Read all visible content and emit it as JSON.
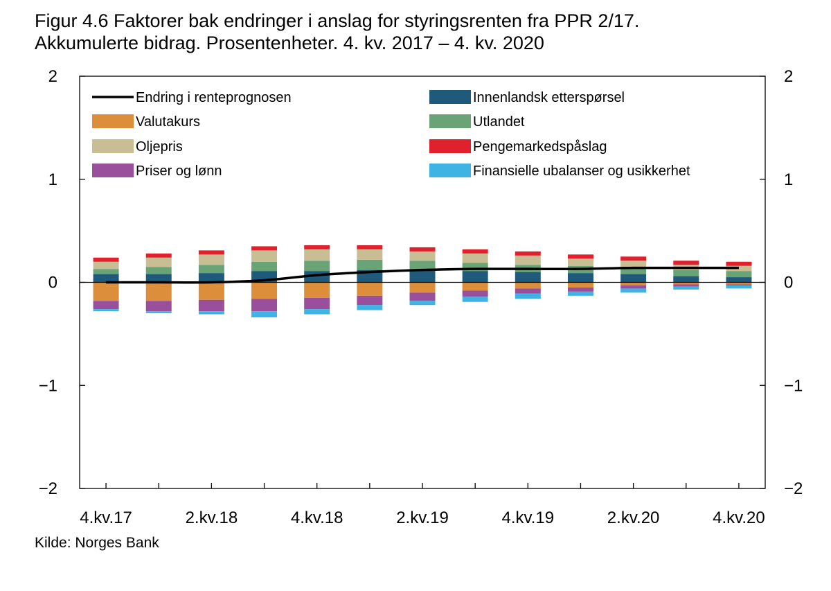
{
  "title_line1": "Figur 4.6 Faktorer bak endringer i anslag for styringsrenten fra PPR 2/17.",
  "title_line2": "Akkumulerte bidrag. Prosentenheter. 4. kv. 2017 – 4. kv. 2020",
  "source": "Kilde: Norges Bank",
  "chart_data": {
    "type": "bar",
    "stacked": true,
    "title": "Figur 4.6 Faktorer bak endringer i anslag for styringsrenten fra PPR 2/17. Akkumulerte bidrag. Prosentenheter. 4. kv. 2017 – 4. kv. 2020",
    "categories": [
      "4.kv.17",
      "1.kv.18",
      "2.kv.18",
      "3.kv.18",
      "4.kv.18",
      "1.kv.19",
      "2.kv.19",
      "3.kv.19",
      "4.kv.19",
      "1.kv.20",
      "2.kv.20",
      "3.kv.20",
      "4.kv.20"
    ],
    "xtick_labels": [
      "4.kv.17",
      "2.kv.18",
      "4.kv.18",
      "2.kv.19",
      "4.kv.19",
      "2.kv.20",
      "4.kv.20"
    ],
    "ylim": [
      -2,
      2
    ],
    "yticks": [
      2,
      1,
      0,
      -1,
      -2
    ],
    "ytick_labels": [
      "2",
      "1",
      "0",
      "−1",
      "−2"
    ],
    "legend_position": "top, two columns",
    "series": [
      {
        "name": "Innenlandsk etterspørsel",
        "color": "#1f5a7a",
        "values": [
          0.08,
          0.08,
          0.09,
          0.11,
          0.11,
          0.12,
          0.12,
          0.11,
          0.1,
          0.09,
          0.08,
          0.06,
          0.05
        ]
      },
      {
        "name": "Utlandet",
        "color": "#6aa376",
        "values": [
          0.05,
          0.07,
          0.08,
          0.09,
          0.1,
          0.1,
          0.09,
          0.08,
          0.07,
          0.07,
          0.07,
          0.06,
          0.06
        ]
      },
      {
        "name": "Oljepris",
        "color": "#c8bd93",
        "values": [
          0.07,
          0.09,
          0.1,
          0.11,
          0.11,
          0.1,
          0.09,
          0.09,
          0.09,
          0.07,
          0.06,
          0.05,
          0.05
        ]
      },
      {
        "name": "Pengemarkedspåslag",
        "color": "#e0202c",
        "values": [
          0.04,
          0.04,
          0.04,
          0.04,
          0.04,
          0.04,
          0.04,
          0.04,
          0.04,
          0.04,
          0.04,
          0.04,
          0.04
        ]
      },
      {
        "name": "Valutakurs",
        "color": "#dd8e3a",
        "values": [
          -0.18,
          -0.18,
          -0.17,
          -0.16,
          -0.15,
          -0.13,
          -0.1,
          -0.08,
          -0.06,
          -0.05,
          -0.03,
          -0.02,
          -0.02
        ]
      },
      {
        "name": "Priser og lønn",
        "color": "#9a4f9c",
        "values": [
          -0.08,
          -0.1,
          -0.11,
          -0.12,
          -0.11,
          -0.09,
          -0.08,
          -0.06,
          -0.05,
          -0.04,
          -0.03,
          -0.02,
          -0.01
        ]
      },
      {
        "name": "Finansielle ubalanser og usikkerhet",
        "color": "#3fb4e4",
        "values": [
          -0.02,
          -0.02,
          -0.03,
          -0.06,
          -0.05,
          -0.05,
          -0.04,
          -0.05,
          -0.05,
          -0.04,
          -0.04,
          -0.03,
          -0.03
        ]
      }
    ],
    "line": {
      "name": "Endring i renteprognosen",
      "color": "#000000",
      "values": [
        0.0,
        0.0,
        0.0,
        0.02,
        0.07,
        0.1,
        0.12,
        0.13,
        0.13,
        0.13,
        0.14,
        0.14,
        0.14
      ]
    },
    "legend": [
      {
        "label": "Endring i renteprognosen",
        "color": "#000000",
        "kind": "line"
      },
      {
        "label": "Innenlandsk etterspørsel",
        "color": "#1f5a7a",
        "kind": "box"
      },
      {
        "label": "Valutakurs",
        "color": "#dd8e3a",
        "kind": "box"
      },
      {
        "label": "Utlandet",
        "color": "#6aa376",
        "kind": "box"
      },
      {
        "label": "Oljepris",
        "color": "#c8bd93",
        "kind": "box"
      },
      {
        "label": "Pengemarkedspåslag",
        "color": "#e0202c",
        "kind": "box"
      },
      {
        "label": "Priser og lønn",
        "color": "#9a4f9c",
        "kind": "box"
      },
      {
        "label": "Finansielle ubalanser og usikkerhet",
        "color": "#3fb4e4",
        "kind": "box"
      }
    ]
  }
}
